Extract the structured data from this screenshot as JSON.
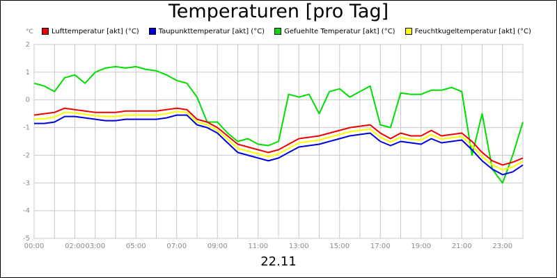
{
  "chart_data": {
    "type": "line",
    "title": "Temperaturen [pro Tag]",
    "xlabel": "22.11",
    "ylabel": "°C",
    "xlim": [
      0,
      24
    ],
    "ylim": [
      -5,
      2
    ],
    "grid": true,
    "legend_position": "top",
    "x_ticks": [
      "00:00",
      "02:00",
      "03:00",
      "05:00",
      "07:00",
      "09:00",
      "11:00",
      "13:00",
      "15:00",
      "17:00",
      "19:00",
      "21:00",
      "23:00"
    ],
    "x_tick_values": [
      0,
      2,
      3,
      5,
      7,
      9,
      11,
      13,
      15,
      17,
      19,
      21,
      23
    ],
    "y_ticks": [
      2,
      1,
      0,
      -1,
      -2,
      -3,
      -4,
      -5
    ],
    "x": [
      0,
      0.5,
      1,
      1.5,
      2,
      2.5,
      3,
      3.5,
      4,
      4.5,
      5,
      5.5,
      6,
      6.5,
      7,
      7.5,
      8,
      8.5,
      9,
      9.5,
      10,
      10.5,
      11,
      11.5,
      12,
      12.5,
      13,
      13.5,
      14,
      14.5,
      15,
      15.5,
      16,
      16.5,
      17,
      17.5,
      18,
      18.5,
      19,
      19.5,
      20,
      20.5,
      21,
      21.5,
      22,
      22.5,
      23,
      23.5,
      24
    ],
    "series": [
      {
        "name": "Lufttemperatur [akt] (°C)",
        "color": "#ee0000",
        "values": [
          -0.55,
          -0.5,
          -0.45,
          -0.3,
          -0.35,
          -0.4,
          -0.45,
          -0.45,
          -0.45,
          -0.4,
          -0.4,
          -0.4,
          -0.4,
          -0.35,
          -0.3,
          -0.35,
          -0.7,
          -0.8,
          -1.0,
          -1.3,
          -1.6,
          -1.7,
          -1.8,
          -1.9,
          -1.8,
          -1.6,
          -1.4,
          -1.35,
          -1.3,
          -1.2,
          -1.1,
          -1.0,
          -0.95,
          -0.9,
          -1.2,
          -1.4,
          -1.2,
          -1.3,
          -1.3,
          -1.1,
          -1.3,
          -1.25,
          -1.2,
          -1.5,
          -1.9,
          -2.2,
          -2.35,
          -2.25,
          -2.1
        ]
      },
      {
        "name": "Taupunkttemperatur [akt] (°C)",
        "color": "#0000dd",
        "values": [
          -0.85,
          -0.85,
          -0.8,
          -0.6,
          -0.6,
          -0.65,
          -0.7,
          -0.75,
          -0.75,
          -0.7,
          -0.7,
          -0.7,
          -0.7,
          -0.65,
          -0.55,
          -0.55,
          -0.9,
          -1.0,
          -1.2,
          -1.55,
          -1.9,
          -2.0,
          -2.1,
          -2.2,
          -2.1,
          -1.9,
          -1.7,
          -1.65,
          -1.6,
          -1.5,
          -1.4,
          -1.3,
          -1.25,
          -1.2,
          -1.5,
          -1.65,
          -1.5,
          -1.55,
          -1.6,
          -1.4,
          -1.55,
          -1.5,
          -1.45,
          -1.8,
          -2.2,
          -2.5,
          -2.7,
          -2.6,
          -2.35
        ]
      },
      {
        "name": "Gefuehlte Temperatur [akt] (°C)",
        "color": "#00dd00",
        "values": [
          0.6,
          0.5,
          0.3,
          0.8,
          0.9,
          0.6,
          1.0,
          1.15,
          1.2,
          1.15,
          1.2,
          1.1,
          1.05,
          0.9,
          0.7,
          0.6,
          0.1,
          -0.8,
          -0.8,
          -1.2,
          -1.5,
          -1.4,
          -1.6,
          -1.65,
          -1.5,
          0.2,
          0.1,
          0.2,
          -0.5,
          0.3,
          0.4,
          0.1,
          0.3,
          0.5,
          -0.9,
          -1.0,
          0.25,
          0.2,
          0.2,
          0.35,
          0.35,
          0.45,
          0.3,
          -2.0,
          -0.5,
          -2.5,
          -3.0,
          -2.0,
          -0.8
        ]
      },
      {
        "name": "Feuchtkugeltemperatur [akt] (°C)",
        "color": "#ffff00",
        "values": [
          -0.7,
          -0.68,
          -0.62,
          -0.45,
          -0.47,
          -0.52,
          -0.57,
          -0.6,
          -0.6,
          -0.55,
          -0.55,
          -0.55,
          -0.55,
          -0.5,
          -0.42,
          -0.45,
          -0.8,
          -0.9,
          -1.1,
          -1.42,
          -1.75,
          -1.85,
          -1.95,
          -2.05,
          -1.95,
          -1.75,
          -1.55,
          -1.5,
          -1.45,
          -1.35,
          -1.25,
          -1.15,
          -1.1,
          -1.05,
          -1.35,
          -1.52,
          -1.35,
          -1.42,
          -1.45,
          -1.25,
          -1.42,
          -1.37,
          -1.32,
          -1.65,
          -2.05,
          -2.35,
          -2.52,
          -2.42,
          -2.22
        ]
      }
    ]
  }
}
